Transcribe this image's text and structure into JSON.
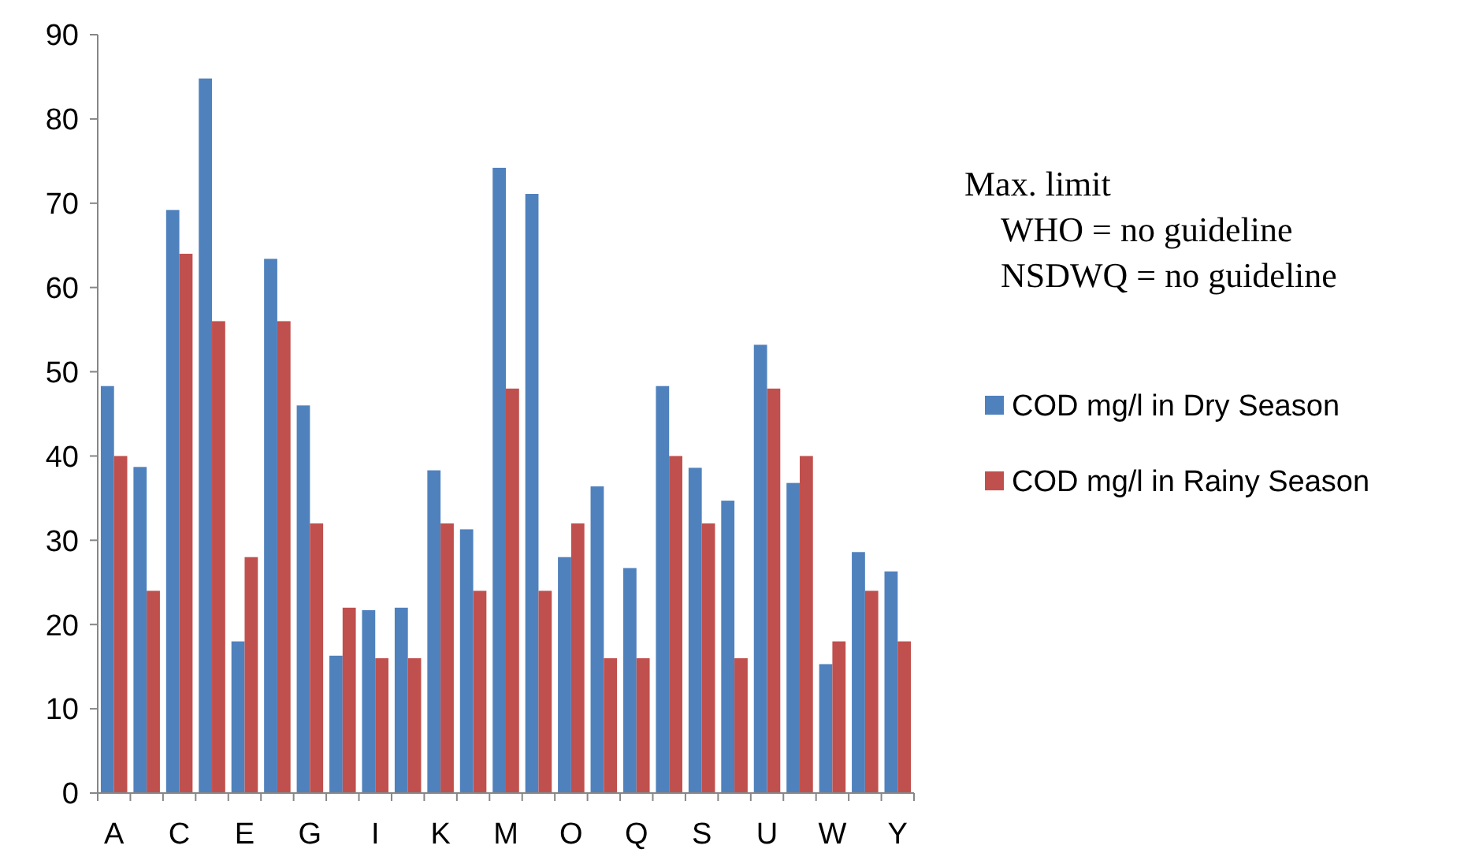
{
  "chart_data": {
    "type": "bar",
    "categories": [
      "A",
      null,
      "C",
      null,
      "E",
      null,
      "G",
      null,
      "I",
      null,
      "K",
      null,
      "M",
      null,
      "O",
      null,
      "Q",
      null,
      "S",
      null,
      "U",
      null,
      "W",
      null,
      "Y"
    ],
    "series": [
      {
        "name": "COD mg/l in Dry Season",
        "color": "#4f81bd",
        "values": [
          48.3,
          38.7,
          69.2,
          84.8,
          18,
          63.4,
          46,
          16.3,
          21.7,
          22,
          38.3,
          31.3,
          74.2,
          71.1,
          28,
          36.4,
          26.7,
          48.3,
          38.6,
          34.7,
          53.2,
          36.8,
          15.3,
          28.6,
          26.3
        ]
      },
      {
        "name": "COD mg/l in Rainy Season",
        "color": "#c0504d",
        "values": [
          40,
          24,
          64,
          56,
          28,
          56,
          32,
          22,
          16,
          16,
          32,
          24,
          48,
          24,
          32,
          16,
          16,
          40,
          32,
          16,
          48,
          40,
          18,
          24,
          18
        ]
      }
    ],
    "ylim": [
      0,
      90
    ],
    "yticks": [
      0,
      10,
      20,
      30,
      40,
      50,
      60,
      70,
      80,
      90
    ],
    "grid": false,
    "legend": "right",
    "annotations": [
      "Max. limit",
      "WHO = no guideline",
      "NSDWQ = no guideline"
    ]
  }
}
